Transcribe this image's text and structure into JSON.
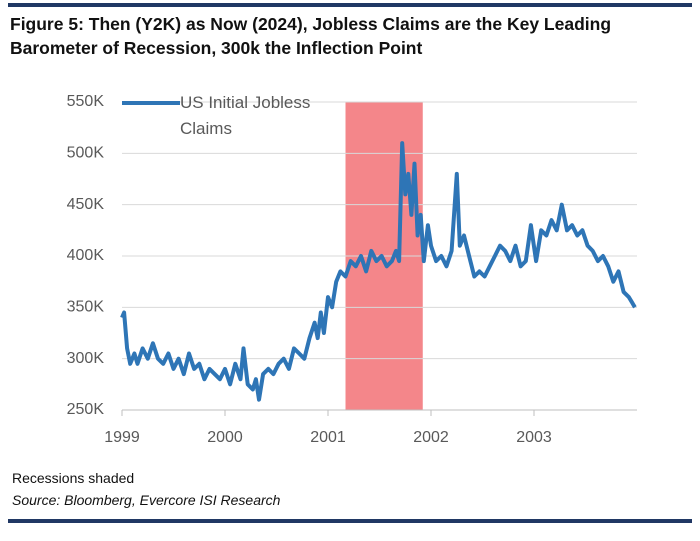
{
  "chart_data": {
    "type": "line",
    "title": "Figure 5: Then (Y2K) as Now (2024), Jobless Claims are the Key Leading Barometer of Recession, 300k the Inflection Point",
    "note": "Recessions shaded",
    "source": "Source: Bloomberg, Evercore ISI Research",
    "x": [
      1999.0,
      1999.02,
      1999.05,
      1999.08,
      1999.12,
      1999.15,
      1999.2,
      1999.25,
      1999.3,
      1999.35,
      1999.4,
      1999.45,
      1999.5,
      1999.55,
      1999.6,
      1999.65,
      1999.7,
      1999.75,
      1999.8,
      1999.85,
      1999.9,
      1999.95,
      2000.0,
      2000.05,
      2000.1,
      2000.15,
      2000.18,
      2000.22,
      2000.27,
      2000.3,
      2000.33,
      2000.37,
      2000.42,
      2000.47,
      2000.52,
      2000.57,
      2000.62,
      2000.67,
      2000.72,
      2000.77,
      2000.82,
      2000.87,
      2000.9,
      2000.93,
      2000.96,
      2001.0,
      2001.04,
      2001.08,
      2001.12,
      2001.17,
      2001.22,
      2001.27,
      2001.32,
      2001.37,
      2001.42,
      2001.47,
      2001.52,
      2001.57,
      2001.62,
      2001.66,
      2001.69,
      2001.72,
      2001.75,
      2001.78,
      2001.81,
      2001.84,
      2001.87,
      2001.9,
      2001.93,
      2001.97,
      2002.0,
      2002.05,
      2002.1,
      2002.15,
      2002.2,
      2002.25,
      2002.28,
      2002.32,
      2002.37,
      2002.42,
      2002.47,
      2002.52,
      2002.57,
      2002.62,
      2002.67,
      2002.72,
      2002.77,
      2002.82,
      2002.87,
      2002.92,
      2002.97,
      2003.02,
      2003.07,
      2003.12,
      2003.17,
      2003.22,
      2003.27,
      2003.32,
      2003.37,
      2003.42,
      2003.47,
      2003.52,
      2003.57,
      2003.62,
      2003.67,
      2003.72,
      2003.77,
      2003.82,
      2003.87,
      2003.92,
      2003.95,
      2003.98
    ],
    "series": [
      {
        "name": "US Initial Jobless Claims",
        "color": "#2e75b6",
        "values": [
          340000,
          345000,
          310000,
          295000,
          305000,
          295000,
          310000,
          300000,
          315000,
          300000,
          295000,
          305000,
          290000,
          300000,
          285000,
          305000,
          290000,
          295000,
          280000,
          290000,
          285000,
          280000,
          290000,
          275000,
          295000,
          280000,
          310000,
          275000,
          270000,
          280000,
          260000,
          285000,
          290000,
          285000,
          295000,
          300000,
          290000,
          310000,
          305000,
          300000,
          320000,
          335000,
          320000,
          345000,
          325000,
          360000,
          350000,
          375000,
          385000,
          380000,
          395000,
          390000,
          400000,
          385000,
          405000,
          395000,
          400000,
          390000,
          395000,
          405000,
          395000,
          510000,
          460000,
          480000,
          440000,
          490000,
          420000,
          440000,
          395000,
          430000,
          410000,
          395000,
          400000,
          390000,
          405000,
          480000,
          410000,
          420000,
          400000,
          380000,
          385000,
          380000,
          390000,
          400000,
          410000,
          405000,
          395000,
          410000,
          390000,
          395000,
          430000,
          395000,
          425000,
          420000,
          435000,
          425000,
          450000,
          425000,
          430000,
          420000,
          425000,
          410000,
          405000,
          395000,
          400000,
          390000,
          375000,
          385000,
          365000,
          360000,
          355000,
          350000
        ]
      }
    ],
    "shaded_regions": [
      {
        "start": 2001.17,
        "end": 2001.92,
        "color": "#f4868a"
      }
    ],
    "xlim": [
      1999,
      2004
    ],
    "xticks": [
      1999,
      2000,
      2001,
      2002,
      2003
    ],
    "ylim": [
      250000,
      550000
    ],
    "yticks": [
      {
        "value": 250000,
        "label": "250K"
      },
      {
        "value": 300000,
        "label": "300K"
      },
      {
        "value": 350000,
        "label": "350K"
      },
      {
        "value": 400000,
        "label": "400K"
      },
      {
        "value": 450000,
        "label": "450K"
      },
      {
        "value": 500000,
        "label": "500K"
      },
      {
        "value": 550000,
        "label": "550K"
      }
    ],
    "grid": true,
    "legend": "upper left"
  }
}
